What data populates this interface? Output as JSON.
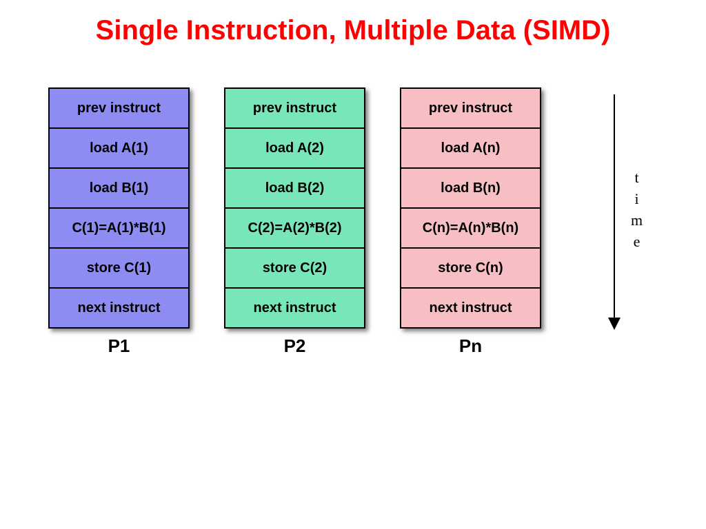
{
  "title": {
    "text": "Single Instruction, Multiple Data (SIMD)",
    "color": "#ff0000",
    "fontsize": 40
  },
  "diagram": {
    "cell_fontsize": 20,
    "label_fontsize": 26,
    "time_label": "time",
    "time_fontsize": 22,
    "columns": [
      {
        "label": "P1",
        "bg_color": "#8c8cf2",
        "cells": [
          "prev instruct",
          "load A(1)",
          "load B(1)",
          "C(1)=A(1)*B(1)",
          "store C(1)",
          "next instruct"
        ]
      },
      {
        "label": "P2",
        "bg_color": "#77e6b8",
        "cells": [
          "prev instruct",
          "load A(2)",
          "load B(2)",
          "C(2)=A(2)*B(2)",
          "store C(2)",
          "next instruct"
        ]
      },
      {
        "label": "Pn",
        "bg_color": "#f7bfc3",
        "cells": [
          "prev instruct",
          "load A(n)",
          "load B(n)",
          "C(n)=A(n)*B(n)",
          "store C(n)",
          "next instruct"
        ]
      }
    ]
  }
}
